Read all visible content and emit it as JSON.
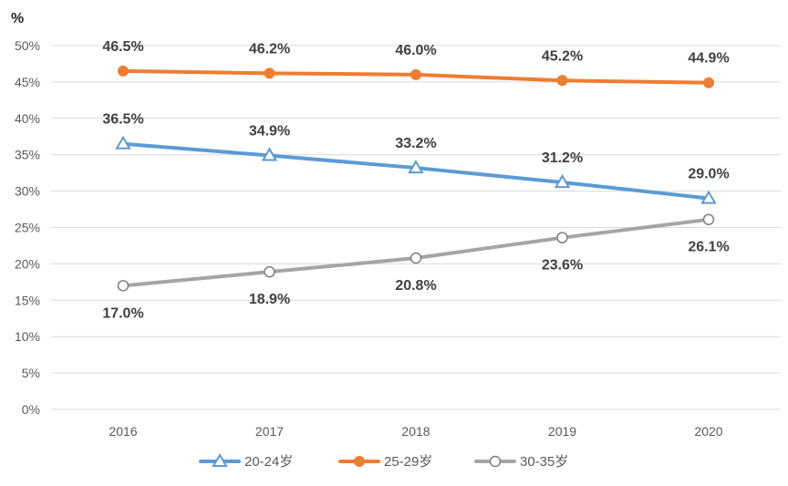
{
  "chart_data": {
    "type": "line",
    "title": "",
    "xlabel": "",
    "ylabel": "%",
    "categories": [
      "2016",
      "2017",
      "2018",
      "2019",
      "2020"
    ],
    "ylim": [
      0,
      50
    ],
    "yticks": [
      "0%",
      "5%",
      "10%",
      "15%",
      "20%",
      "25%",
      "30%",
      "35%",
      "40%",
      "45%",
      "50%"
    ],
    "grid": true,
    "legend_position": "bottom",
    "series": [
      {
        "name": "20-24岁",
        "values": [
          36.5,
          34.9,
          33.2,
          31.2,
          29.0
        ],
        "labels": [
          "36.5%",
          "34.9%",
          "33.2%",
          "31.2%",
          "29.0%"
        ],
        "color": "#5b9bd5",
        "marker": "triangle-open",
        "label_position": "above"
      },
      {
        "name": "25-29岁",
        "values": [
          46.5,
          46.2,
          46.0,
          45.2,
          44.9
        ],
        "labels": [
          "46.5%",
          "46.2%",
          "46.0%",
          "45.2%",
          "44.9%"
        ],
        "color": "#ed7d31",
        "marker": "circle-filled",
        "label_position": "above"
      },
      {
        "name": "30-35岁",
        "values": [
          17.0,
          18.9,
          20.8,
          23.6,
          26.1
        ],
        "labels": [
          "17.0%",
          "18.9%",
          "20.8%",
          "23.6%",
          "26.1%"
        ],
        "color": "#a5a5a5",
        "marker": "circle-open",
        "label_position": "below"
      }
    ]
  }
}
